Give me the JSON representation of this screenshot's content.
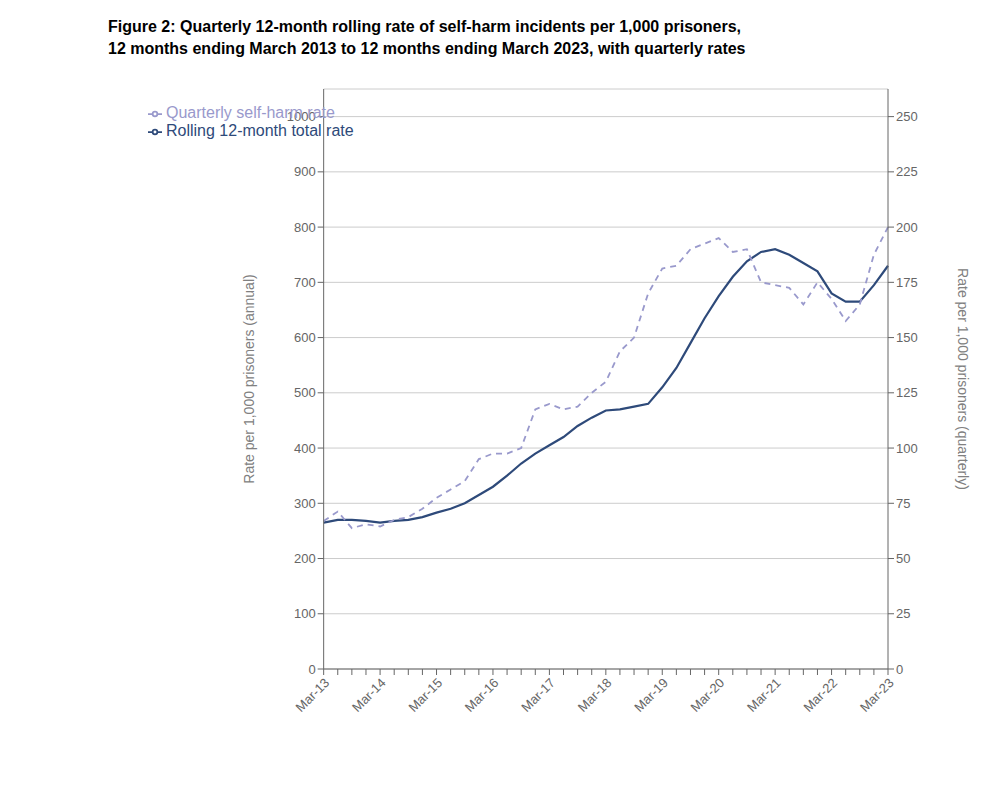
{
  "chart_data": {
    "type": "line",
    "title": "Figure 2: Quarterly 12-month rolling rate of self-harm incidents per 1,000 prisoners,",
    "subtitle": "12 months ending March 2013 to 12 months ending March 2023, with quarterly rates",
    "ylabel": "Rate per 1,000 prisoners (annual)",
    "y2label": "Rate per 1,000 prisoners (quarterly)",
    "categories": [
      "Mar-13",
      null,
      null,
      null,
      "Mar-14",
      null,
      null,
      null,
      "Mar-15",
      null,
      null,
      null,
      "Mar-16",
      null,
      null,
      null,
      "Mar-17",
      null,
      null,
      null,
      "Mar-18",
      null,
      null,
      null,
      "Mar-19",
      null,
      null,
      null,
      "Mar-20",
      null,
      null,
      null,
      "Mar-21",
      null,
      null,
      null,
      "Mar-22",
      null,
      null,
      null,
      "Mar-23"
    ],
    "series": [
      {
        "name": "Rolling 12-month total rate",
        "color": "#2e4a7a",
        "line_style": "solid",
        "values": [
          265,
          270,
          270,
          268,
          265,
          268,
          270,
          275,
          283,
          290,
          300,
          315,
          330,
          350,
          372,
          390,
          405,
          420,
          440,
          455,
          468,
          470,
          475,
          480,
          510,
          545,
          590,
          635,
          675,
          710,
          738,
          755,
          760,
          750,
          735,
          720,
          680,
          665,
          665,
          695,
          730
        ]
      },
      {
        "name": "Quarterly self-harm rate",
        "color": "#9999cc",
        "line_style": "dashed",
        "values": [
          268,
          285,
          255,
          262,
          258,
          270,
          275,
          290,
          310,
          325,
          340,
          380,
          390,
          390,
          400,
          470,
          480,
          470,
          475,
          500,
          520,
          575,
          600,
          680,
          725,
          730,
          760,
          770,
          780,
          755,
          760,
          700,
          695,
          690,
          660,
          700,
          670,
          630,
          660,
          750,
          800
        ]
      }
    ],
    "ylim": [
      0,
      1050
    ],
    "yticks": [
      0,
      100,
      200,
      300,
      400,
      500,
      600,
      700,
      800,
      900,
      1000
    ],
    "y2lim": [
      0,
      262.5
    ],
    "y2ticks": [
      0,
      25,
      50,
      75,
      100,
      125,
      150,
      175,
      200,
      225,
      250
    ],
    "grid": true,
    "legend": "upper left"
  }
}
